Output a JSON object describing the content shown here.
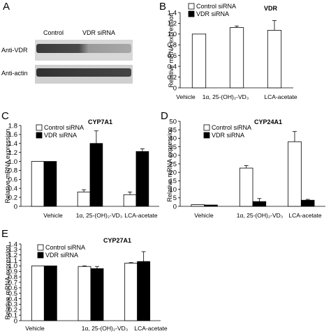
{
  "panel_a": {
    "label": "A",
    "lane_labels": [
      "Control",
      "VDR siRNA"
    ],
    "row_labels": [
      "Anti-VDR",
      "Anti-actin"
    ]
  },
  "legend": {
    "control": "Control siRNA",
    "vdr": "VDR siRNA"
  },
  "colors": {
    "control": "#ffffff",
    "vdr": "#000000",
    "axis": "#000000"
  },
  "chart_data": [
    {
      "panel": "B",
      "type": "bar",
      "title": "VDR",
      "ylabel": "Relative mRNA expression",
      "ylim": [
        0,
        1.4
      ],
      "yticks": [
        "0",
        "0.2",
        "0.4",
        "0.6",
        "0.8",
        "1.0",
        "1.2",
        "1.4"
      ],
      "categories": [
        "Vehicle",
        "1α, 25-(OH)₂-VD₃",
        "LCA-acetate"
      ],
      "series": [
        {
          "name": "Control siRNA",
          "values": [
            1.0,
            1.12,
            1.07
          ],
          "errors": [
            0,
            0.03,
            0.18
          ]
        }
      ],
      "legend": [
        "Control siRNA",
        "VDR siRNA"
      ]
    },
    {
      "panel": "C",
      "type": "bar",
      "title": "CYP7A1",
      "ylabel": "Relative mRNA expression",
      "ylim": [
        0,
        1.8
      ],
      "yticks": [
        "0",
        "0.2",
        "0.4",
        "0.6",
        "0.8",
        "1.0",
        "1.2",
        "1.4",
        "1.6",
        "1.8"
      ],
      "categories": [
        "Vehicle",
        "1α, 25-(OH)₂-VD₃",
        "LCA-acetate"
      ],
      "series": [
        {
          "name": "Control siRNA",
          "values": [
            1.0,
            0.32,
            0.26
          ],
          "errors": [
            0,
            0.05,
            0.06
          ]
        },
        {
          "name": "VDR siRNA",
          "values": [
            1.0,
            1.4,
            1.22
          ],
          "errors": [
            0,
            0.28,
            0.06
          ]
        }
      ]
    },
    {
      "panel": "D",
      "type": "bar",
      "title": "CYP24A1",
      "ylabel": "Relative mRNA expression",
      "ylim": [
        0,
        50
      ],
      "yticks": [
        "0",
        "5",
        "10",
        "15",
        "20",
        "25",
        "30",
        "35",
        "40",
        "45",
        "50"
      ],
      "categories": [
        "Vehicle",
        "1α, 25-(OH)₂-VD₃",
        "LCA-acetate"
      ],
      "series": [
        {
          "name": "Control siRNA",
          "values": [
            1.0,
            22.5,
            38.0
          ],
          "errors": [
            0,
            1.5,
            6.0
          ]
        },
        {
          "name": "VDR siRNA",
          "values": [
            0.8,
            2.8,
            3.6
          ],
          "errors": [
            0,
            1.8,
            0.5
          ]
        }
      ]
    },
    {
      "panel": "E",
      "type": "bar",
      "title": "CYP27A1",
      "ylabel": "Relative mRNA expression",
      "ylim": [
        0,
        1.4
      ],
      "yticks": [
        "0",
        "0.1",
        "0.2",
        "0.3",
        "0.4",
        "0.5",
        "0.6",
        "0.7",
        "0.8",
        "0.9",
        "1.0",
        "1.1",
        "1.2",
        "1.3",
        "1.4"
      ],
      "categories": [
        "Vehicle",
        "1α, 25-(OH)₂-VD₃",
        "LCA-acetate"
      ],
      "series": [
        {
          "name": "Control siRNA",
          "values": [
            1.0,
            0.99,
            1.05
          ],
          "errors": [
            0,
            0.01,
            0.01
          ]
        },
        {
          "name": "VDR siRNA",
          "values": [
            1.0,
            0.95,
            1.08
          ],
          "errors": [
            0,
            0.04,
            0.18
          ]
        }
      ]
    }
  ]
}
